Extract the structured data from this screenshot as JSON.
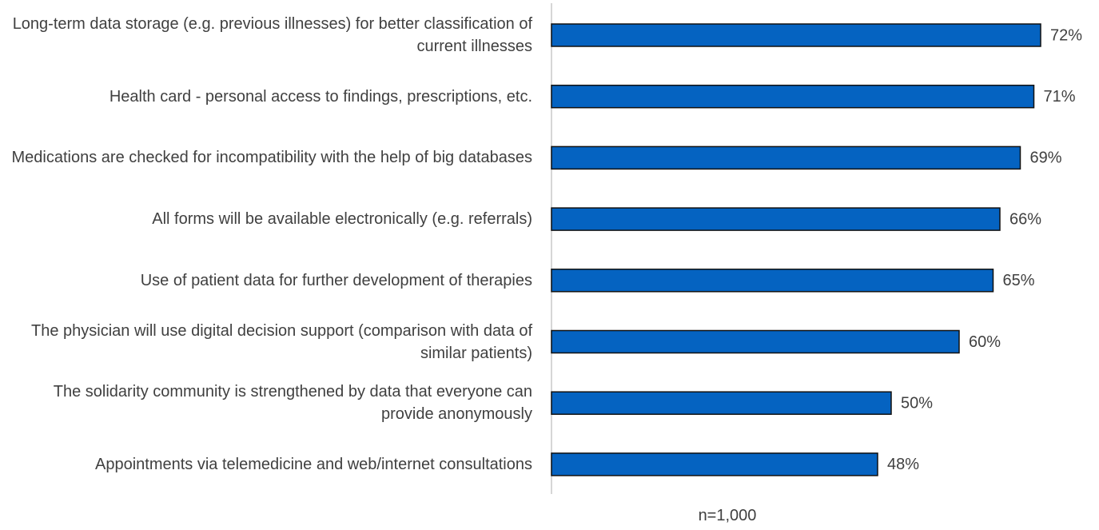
{
  "chart_data": {
    "type": "bar",
    "orientation": "horizontal",
    "categories": [
      "Long-term data storage (e.g. previous illnesses) for better classification of current illnesses",
      "Health card - personal access to findings, prescriptions, etc.",
      "Medications are checked for incompatibility with the help of big databases",
      "All forms will be available electronically (e.g. referrals)",
      "Use of patient data for further development of therapies",
      "The physician will use digital decision support (comparison with data of similar patients)",
      "The solidarity community is strengthened by data that everyone can provide anonymously",
      "Appointments via telemedicine and web/internet consultations"
    ],
    "values": [
      72,
      71,
      69,
      66,
      65,
      60,
      50,
      48
    ],
    "value_labels": [
      "72%",
      "71%",
      "69%",
      "66%",
      "65%",
      "60%",
      "50%",
      "48%"
    ],
    "color": "#0563c1",
    "annotation": "n=1,000"
  }
}
